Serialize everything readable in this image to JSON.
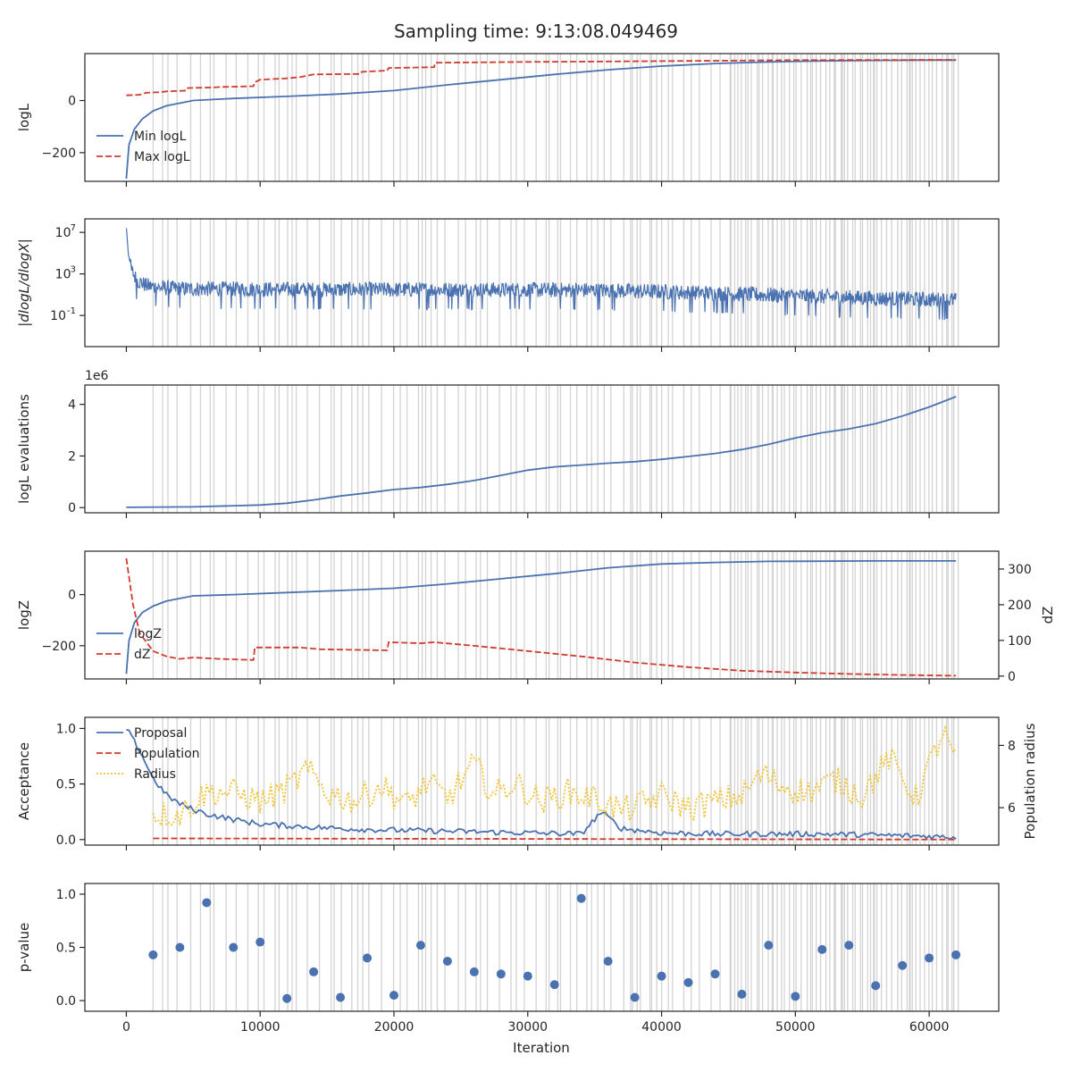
{
  "title": "Sampling time: 9:13:08.049469",
  "xlabel": "Iteration",
  "colors": {
    "blue": "#4a72b0",
    "red": "#d13b2e",
    "gold": "#f3c432",
    "insertion": "#d3d3d3"
  },
  "insertion_iterations_note": "vertical gray lines mark insertion-test iterations",
  "chart_data": [
    {
      "type": "line",
      "panel": "logL",
      "ylabel": "logL",
      "xlim": [
        -3100,
        65200
      ],
      "ylim": [
        -310,
        180
      ],
      "yticks": [
        0,
        -200
      ],
      "ytick_labels": [
        "0",
        "−200"
      ],
      "legend": "lower-left",
      "series": [
        {
          "name": "Min logL",
          "style": "solid",
          "color": "blue",
          "x": [
            0,
            200,
            600,
            1200,
            2000,
            3000,
            5000,
            8000,
            12000,
            16000,
            20000,
            24000,
            28000,
            32000,
            36000,
            40000,
            44000,
            48000,
            52000,
            56000,
            60000,
            62000
          ],
          "y": [
            -300,
            -170,
            -110,
            -70,
            -40,
            -20,
            0,
            8,
            16,
            25,
            38,
            60,
            80,
            100,
            118,
            132,
            142,
            148,
            152,
            154,
            155,
            155
          ]
        },
        {
          "name": "Max logL",
          "style": "dashed",
          "color": "red",
          "x": [
            0,
            1000,
            1500,
            2500,
            3000,
            4500,
            4600,
            6500,
            7000,
            9500,
            9600,
            10000,
            12000,
            13000,
            14000,
            17500,
            17600,
            19500,
            19600,
            23000,
            23100,
            30000,
            36000,
            42000,
            50000,
            62000
          ],
          "y": [
            20,
            22,
            30,
            32,
            35,
            38,
            48,
            50,
            52,
            55,
            70,
            80,
            85,
            90,
            100,
            102,
            110,
            115,
            125,
            128,
            145,
            148,
            150,
            152,
            155,
            156
          ]
        }
      ]
    },
    {
      "type": "line",
      "panel": "dlogL",
      "ylabel": "|dlogL/dlogX|",
      "yscale": "log",
      "xlim": [
        -3100,
        65200
      ],
      "ylim_log10": [
        -4,
        8.3
      ],
      "yticks_log10": [
        7,
        3,
        -1
      ],
      "ytick_labels": [
        "10^7",
        "10^3",
        "10^-1"
      ],
      "series": [
        {
          "name": "",
          "style": "noisy",
          "color": "blue",
          "x": [
            0,
            50,
            150,
            400,
            800,
            1500,
            2500,
            4000,
            8000,
            15000,
            25000,
            35000,
            40000,
            45000,
            50000,
            55000,
            60000,
            62000
          ],
          "y_log10_center": [
            7.5,
            6.8,
            5.0,
            3.5,
            2.6,
            2.1,
            1.9,
            1.8,
            1.75,
            1.7,
            1.7,
            1.65,
            1.5,
            1.3,
            1.1,
            0.9,
            0.75,
            0.7
          ],
          "noise_amplitude_log10": 1.5
        }
      ]
    },
    {
      "type": "line",
      "panel": "evaluations",
      "ylabel": "logL evaluations",
      "offset_label": "1e6",
      "xlim": [
        -3100,
        65200
      ],
      "ylim": [
        -0.2,
        4.75
      ],
      "yticks": [
        4,
        2,
        0
      ],
      "ytick_labels": [
        "4",
        "2",
        "0"
      ],
      "series": [
        {
          "name": "",
          "style": "solid",
          "color": "blue",
          "x": [
            0,
            5000,
            10000,
            12000,
            14000,
            16000,
            18000,
            20000,
            22000,
            24000,
            26000,
            28000,
            30000,
            32000,
            34000,
            36000,
            38000,
            40000,
            42000,
            44000,
            46000,
            48000,
            50000,
            52000,
            54000,
            56000,
            58000,
            60000,
            62000
          ],
          "y": [
            0.01,
            0.03,
            0.1,
            0.17,
            0.3,
            0.45,
            0.57,
            0.7,
            0.78,
            0.9,
            1.05,
            1.25,
            1.45,
            1.58,
            1.65,
            1.72,
            1.78,
            1.87,
            1.98,
            2.1,
            2.25,
            2.45,
            2.7,
            2.9,
            3.05,
            3.25,
            3.55,
            3.9,
            4.3
          ]
        }
      ]
    },
    {
      "type": "line",
      "panel": "logZ",
      "ylabel": "logZ",
      "ylabel_right": "dZ",
      "xlim": [
        -3100,
        65200
      ],
      "ylim": [
        -330,
        170
      ],
      "yticks": [
        0,
        -200
      ],
      "ytick_labels": [
        "0",
        "−200"
      ],
      "ylim_right": [
        -8,
        350
      ],
      "yticks_right": [
        0,
        100,
        200,
        300
      ],
      "ytick_labels_right": [
        "0",
        "100",
        "200",
        "300"
      ],
      "legend": "lower-left",
      "series": [
        {
          "name": "logZ",
          "style": "solid",
          "color": "blue",
          "axis": "left",
          "x": [
            0,
            200,
            600,
            1200,
            2000,
            3000,
            5000,
            8000,
            12000,
            16000,
            20000,
            24000,
            28000,
            32000,
            36000,
            40000,
            44000,
            48000,
            52000,
            56000,
            60000,
            62000
          ],
          "y": [
            -310,
            -180,
            -110,
            -70,
            -45,
            -25,
            -5,
            0,
            8,
            16,
            25,
            42,
            62,
            82,
            105,
            120,
            126,
            130,
            131,
            132,
            132,
            132
          ]
        },
        {
          "name": "dZ",
          "style": "dashed",
          "color": "red",
          "axis": "right",
          "x": [
            0,
            500,
            1000,
            2000,
            3000,
            4000,
            5000,
            7000,
            9500,
            9600,
            13000,
            14500,
            19500,
            19600,
            22000,
            23000,
            26000,
            30000,
            34000,
            38000,
            42000,
            46000,
            50000,
            54000,
            58000,
            62000
          ],
          "y": [
            330,
            200,
            120,
            70,
            55,
            48,
            52,
            48,
            45,
            80,
            80,
            75,
            72,
            95,
            92,
            95,
            85,
            70,
            55,
            38,
            25,
            15,
            10,
            6,
            3,
            1
          ]
        }
      ]
    },
    {
      "type": "line",
      "panel": "acceptance",
      "ylabel": "Acceptance",
      "ylabel_right": "Population radius",
      "xlim": [
        -3100,
        65200
      ],
      "ylim": [
        -0.05,
        1.1
      ],
      "yticks": [
        0.0,
        0.5,
        1.0
      ],
      "ytick_labels": [
        "0.0",
        "0.5",
        "1.0"
      ],
      "ylim_right": [
        4.8,
        8.9
      ],
      "yticks_right": [
        6,
        8
      ],
      "ytick_labels_right": [
        "6",
        "8"
      ],
      "legend": "upper-left",
      "series": [
        {
          "name": "Proposal",
          "style": "solid",
          "color": "blue",
          "axis": "left",
          "x": [
            0,
            1000,
            2000,
            3000,
            4000,
            5000,
            6000,
            8000,
            10000,
            14000,
            18000,
            22000,
            26000,
            30000,
            34000,
            35500,
            37000,
            40000,
            44000,
            48000,
            52000,
            56000,
            60000,
            62000
          ],
          "y": [
            1.0,
            0.8,
            0.55,
            0.4,
            0.32,
            0.27,
            0.23,
            0.18,
            0.14,
            0.11,
            0.09,
            0.08,
            0.07,
            0.06,
            0.05,
            0.25,
            0.1,
            0.06,
            0.05,
            0.05,
            0.05,
            0.04,
            0.03,
            0.02
          ]
        },
        {
          "name": "Population",
          "style": "dashed",
          "color": "red",
          "axis": "left",
          "x": [
            2000,
            62000
          ],
          "y": [
            0.01,
            0.0
          ]
        },
        {
          "name": "Radius",
          "style": "dotted",
          "color": "gold",
          "axis": "right",
          "x": [
            2000,
            4000,
            6000,
            8000,
            10000,
            12000,
            13500,
            15000,
            17000,
            19000,
            21000,
            22500,
            24000,
            26000,
            27500,
            29000,
            31000,
            33000,
            35000,
            37000,
            38500,
            40000,
            42000,
            44000,
            46000,
            47500,
            49000,
            51000,
            53000,
            55000,
            57000,
            59000,
            61000,
            62000
          ],
          "y": [
            5.8,
            5.8,
            6.5,
            6.5,
            6.2,
            6.6,
            7.2,
            6.5,
            6.2,
            6.7,
            6.1,
            6.8,
            6.3,
            7.4,
            6.4,
            6.8,
            6.2,
            6.5,
            6.3,
            5.9,
            6.1,
            6.4,
            6.0,
            6.2,
            6.4,
            7.1,
            6.7,
            6.5,
            6.9,
            6.4,
            7.6,
            6.3,
            8.4,
            7.5
          ]
        }
      ]
    },
    {
      "type": "scatter",
      "panel": "pvalue",
      "ylabel": "p-value",
      "xlim": [
        -3100,
        65200
      ],
      "ylim": [
        -0.1,
        1.1
      ],
      "yticks": [
        0.0,
        0.5,
        1.0
      ],
      "ytick_labels": [
        "0.0",
        "0.5",
        "1.0"
      ],
      "xticks": [
        0,
        10000,
        20000,
        30000,
        40000,
        50000,
        60000
      ],
      "xtick_labels": [
        "0",
        "10000",
        "20000",
        "30000",
        "40000",
        "50000",
        "60000"
      ],
      "series": [
        {
          "name": "",
          "color": "blue",
          "x": [
            2000,
            4000,
            6000,
            8000,
            10000,
            12000,
            14000,
            16000,
            18000,
            20000,
            22000,
            24000,
            26000,
            28000,
            30000,
            32000,
            34000,
            36000,
            38000,
            40000,
            42000,
            44000,
            46000,
            48000,
            50000,
            52000,
            54000,
            56000,
            58000,
            60000,
            62000
          ],
          "y": [
            0.43,
            0.5,
            0.92,
            0.5,
            0.55,
            0.02,
            0.27,
            0.03,
            0.4,
            0.05,
            0.52,
            0.37,
            0.27,
            0.25,
            0.23,
            0.15,
            0.96,
            0.37,
            0.03,
            0.23,
            0.17,
            0.25,
            0.06,
            0.52,
            0.04,
            0.48,
            0.52,
            0.14,
            0.33,
            0.4,
            0.43
          ]
        }
      ]
    }
  ],
  "insertion_iterations": []
}
